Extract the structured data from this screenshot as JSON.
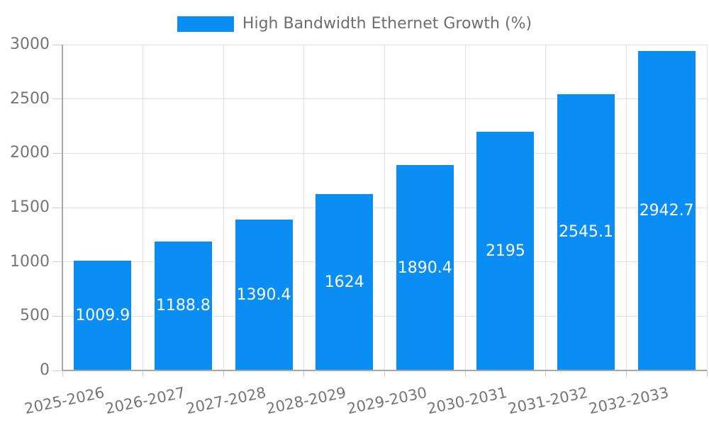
{
  "chart_data": {
    "type": "bar",
    "title": "",
    "legend_label": "High Bandwidth Ethernet Growth (%)",
    "legend_position": "top",
    "categories": [
      "2025-2026",
      "2026-2027",
      "2027-2028",
      "2028-2029",
      "2029-2030",
      "2030-2031",
      "2031-2032",
      "2032-2033"
    ],
    "values": [
      1009.9,
      1188.8,
      1390.4,
      1624,
      1890.4,
      2195,
      2545.1,
      2942.7
    ],
    "value_labels": [
      "1009.9",
      "1188.8",
      "1390.4",
      "1624",
      "1890.4",
      "2195",
      "2545.1",
      "2942.7"
    ],
    "xlabel": "",
    "ylabel": "",
    "ylim": [
      0,
      3000
    ],
    "yticks": [
      0,
      500,
      1000,
      1500,
      2000,
      2500,
      3000
    ],
    "grid": true,
    "x_label_rotation_deg": -12,
    "colors": {
      "bar": "#0a8ef4",
      "bar_label": "#ffffff",
      "axis_text": "#757575",
      "legend_text": "#6e6e6e",
      "grid": "#e2e2e2",
      "axis": "#a8a8a8",
      "tick": "#cccccc",
      "background": "#ffffff"
    }
  }
}
